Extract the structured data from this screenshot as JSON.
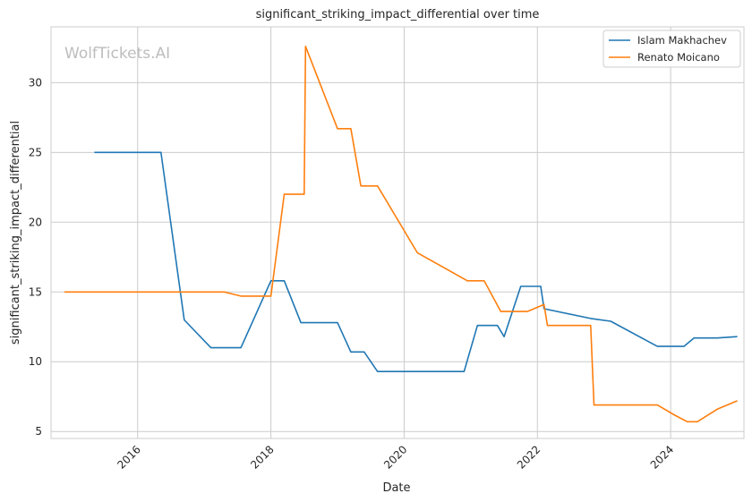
{
  "chart_data": {
    "type": "line",
    "title": "significant_striking_impact_differential over time",
    "xlabel": "Date",
    "ylabel": "significant_striking_impact_differential",
    "watermark": "WolfTickets.AI",
    "xlim": [
      2014.7,
      2025.1
    ],
    "ylim": [
      4.5,
      34.0
    ],
    "xticks": [
      2016,
      2018,
      2020,
      2022,
      2024
    ],
    "yticks": [
      5,
      10,
      15,
      20,
      25,
      30
    ],
    "grid": true,
    "legend_position": "top-right",
    "series": [
      {
        "name": "Islam Makhachev",
        "color": "#1f77b4",
        "points": [
          [
            2015.35,
            25.0
          ],
          [
            2016.35,
            25.0
          ],
          [
            2016.7,
            13.0
          ],
          [
            2017.1,
            11.0
          ],
          [
            2017.55,
            11.0
          ],
          [
            2018.0,
            15.8
          ],
          [
            2018.2,
            15.8
          ],
          [
            2018.45,
            12.8
          ],
          [
            2019.0,
            12.8
          ],
          [
            2019.2,
            10.7
          ],
          [
            2019.4,
            10.7
          ],
          [
            2019.6,
            9.3
          ],
          [
            2020.9,
            9.3
          ],
          [
            2021.1,
            12.6
          ],
          [
            2021.4,
            12.6
          ],
          [
            2021.5,
            11.8
          ],
          [
            2021.75,
            15.4
          ],
          [
            2022.05,
            15.4
          ],
          [
            2022.1,
            13.8
          ],
          [
            2022.8,
            13.1
          ],
          [
            2023.1,
            12.9
          ],
          [
            2023.8,
            11.1
          ],
          [
            2024.2,
            11.1
          ],
          [
            2024.35,
            11.7
          ],
          [
            2024.7,
            11.7
          ],
          [
            2025.0,
            11.8
          ]
        ]
      },
      {
        "name": "Renato Moicano",
        "color": "#ff7f0e",
        "points": [
          [
            2014.9,
            15.0
          ],
          [
            2017.3,
            15.0
          ],
          [
            2017.55,
            14.7
          ],
          [
            2018.0,
            14.7
          ],
          [
            2018.2,
            22.0
          ],
          [
            2018.5,
            22.0
          ],
          [
            2018.52,
            32.6
          ],
          [
            2019.0,
            26.7
          ],
          [
            2019.2,
            26.7
          ],
          [
            2019.35,
            22.6
          ],
          [
            2019.6,
            22.6
          ],
          [
            2020.2,
            17.8
          ],
          [
            2020.95,
            15.8
          ],
          [
            2021.2,
            15.8
          ],
          [
            2021.45,
            13.6
          ],
          [
            2021.85,
            13.6
          ],
          [
            2022.1,
            14.1
          ],
          [
            2022.15,
            12.6
          ],
          [
            2022.8,
            12.6
          ],
          [
            2022.85,
            6.9
          ],
          [
            2023.8,
            6.9
          ],
          [
            2024.05,
            6.2
          ],
          [
            2024.25,
            5.7
          ],
          [
            2024.4,
            5.7
          ],
          [
            2024.7,
            6.6
          ],
          [
            2025.0,
            7.2
          ]
        ]
      }
    ]
  }
}
